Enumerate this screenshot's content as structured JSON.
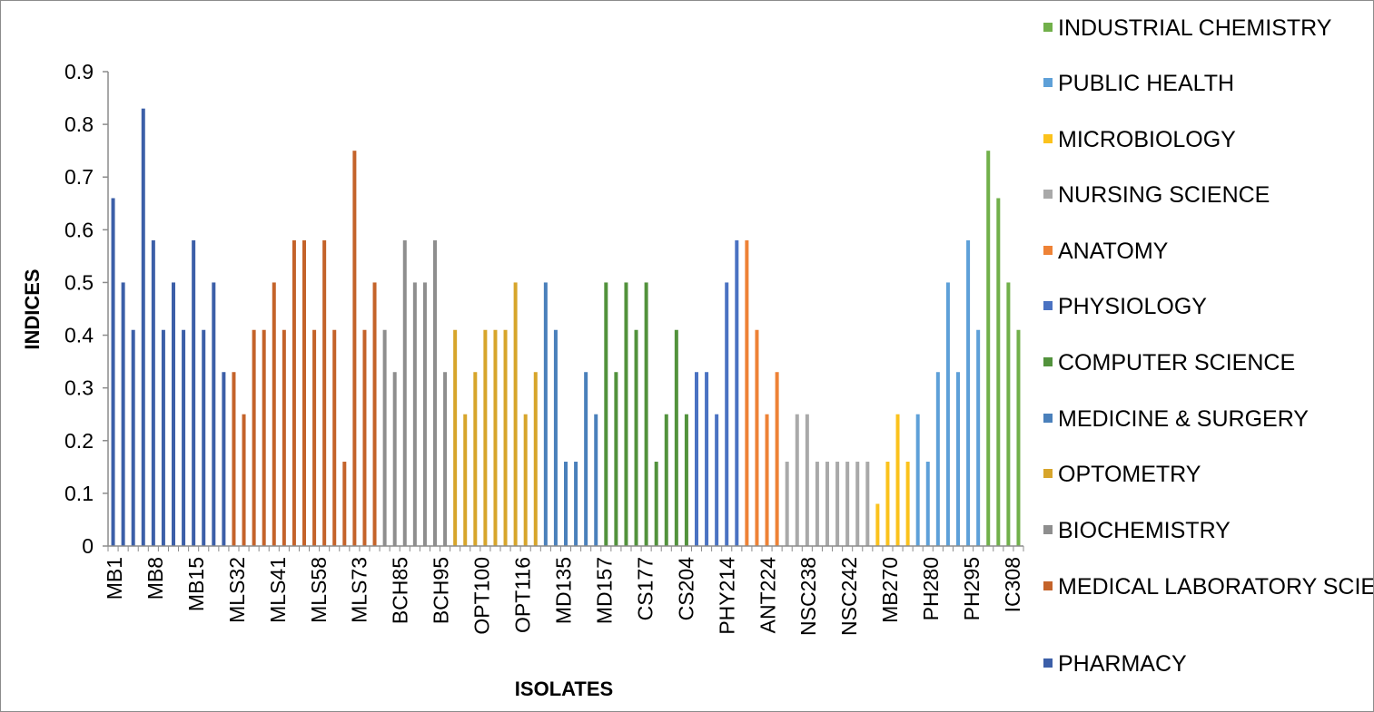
{
  "chart_data": {
    "type": "bar",
    "xlabel": "ISOLATES",
    "ylabel": "INDICES",
    "ylim": [
      0,
      0.9
    ],
    "y_ticks": [
      "0",
      "0.1",
      "0.2",
      "0.3",
      "0.4",
      "0.5",
      "0.6",
      "0.7",
      "0.8",
      "0.9"
    ],
    "legend_position": "right",
    "tick_labels": [
      "MB1",
      "MB8",
      "MB15",
      "MLS32",
      "MLS41",
      "MLS58",
      "MLS73",
      "BCH85",
      "BCH95",
      "OPT100",
      "OPT116",
      "MD135",
      "MD157",
      "CS177",
      "CS204",
      "PHY214",
      "ANT224",
      "NSC238",
      "NSC242",
      "MB270",
      "PH280",
      "PH295",
      "IC308"
    ],
    "series": [
      {
        "name": "PHARMACY",
        "color": "#3c5fa8",
        "values": [
          0.66,
          0.5,
          0.41,
          0.83,
          0.58,
          0.41,
          0.5,
          0.41,
          0.58,
          0.41,
          0.5,
          0.33
        ]
      },
      {
        "name": "MEDICAL LABORATORY SCIENCE",
        "color": "#c4632a",
        "values": [
          0.33,
          0.25,
          0.41,
          0.41,
          0.5,
          0.41,
          0.58,
          0.58,
          0.41,
          0.58,
          0.41,
          0.16,
          0.75,
          0.41,
          0.5
        ]
      },
      {
        "name": "BIOCHEMISTRY",
        "color": "#8e8e8e",
        "values": [
          0.41,
          0.33,
          0.58,
          0.5,
          0.5,
          0.58,
          0.33
        ]
      },
      {
        "name": "OPTOMETRY",
        "color": "#d7a52b",
        "values": [
          0.41,
          0.25,
          0.33,
          0.41,
          0.41,
          0.41,
          0.5,
          0.25,
          0.33
        ]
      },
      {
        "name": "MEDICINE & SURGERY",
        "color": "#4a80bb",
        "values": [
          0.5,
          0.41,
          0.16,
          0.16,
          0.33,
          0.25
        ]
      },
      {
        "name": "COMPUTER SCIENCE",
        "color": "#52923c",
        "values": [
          0.5,
          0.33,
          0.5,
          0.41,
          0.5,
          0.16,
          0.25,
          0.41,
          0.25
        ]
      },
      {
        "name": "PHYSIOLOGY",
        "color": "#4a72c2",
        "values": [
          0.33,
          0.33,
          0.25,
          0.5,
          0.58
        ]
      },
      {
        "name": "ANATOMY",
        "color": "#ee8236",
        "values": [
          0.58,
          0.41,
          0.25,
          0.33
        ]
      },
      {
        "name": "NURSING SCIENCE",
        "color": "#a9a9a9",
        "values": [
          0.16,
          0.25,
          0.25,
          0.16,
          0.16,
          0.16,
          0.16,
          0.16,
          0.16
        ]
      },
      {
        "name": "MICROBIOLOGY",
        "color": "#fbc21c",
        "values": [
          0.08,
          0.16,
          0.25,
          0.16
        ]
      },
      {
        "name": "PUBLIC HEALTH",
        "color": "#5ea0d8",
        "values": [
          0.25,
          0.16,
          0.33,
          0.5,
          0.33,
          0.58,
          0.41
        ]
      },
      {
        "name": "INDUSTRIAL CHEMISTRY",
        "color": "#71b04a",
        "values": [
          0.75,
          0.66,
          0.5,
          0.41
        ]
      }
    ],
    "legend_entries": [
      {
        "label": "INDUSTRIAL CHEMISTRY",
        "color": "#71b04a"
      },
      {
        "label": "PUBLIC HEALTH",
        "color": "#5ea0d8"
      },
      {
        "label": "MICROBIOLOGY",
        "color": "#fbc21c"
      },
      {
        "label": "NURSING SCIENCE",
        "color": "#a9a9a9"
      },
      {
        "label": "ANATOMY",
        "color": "#ee8236"
      },
      {
        "label": "PHYSIOLOGY",
        "color": "#4a72c2"
      },
      {
        "label": "COMPUTER SCIENCE",
        "color": "#52923c"
      },
      {
        "label": "MEDICINE & SURGERY",
        "color": "#4a80bb"
      },
      {
        "label": "OPTOMETRY",
        "color": "#d7a52b"
      },
      {
        "label": "BIOCHEMISTRY",
        "color": "#8e8e8e"
      },
      {
        "label": "MEDICAL LABORATORY SCIENCE",
        "color": "#c4632a"
      },
      {
        "label": "PHARMACY",
        "color": "#3c5fa8"
      }
    ]
  }
}
